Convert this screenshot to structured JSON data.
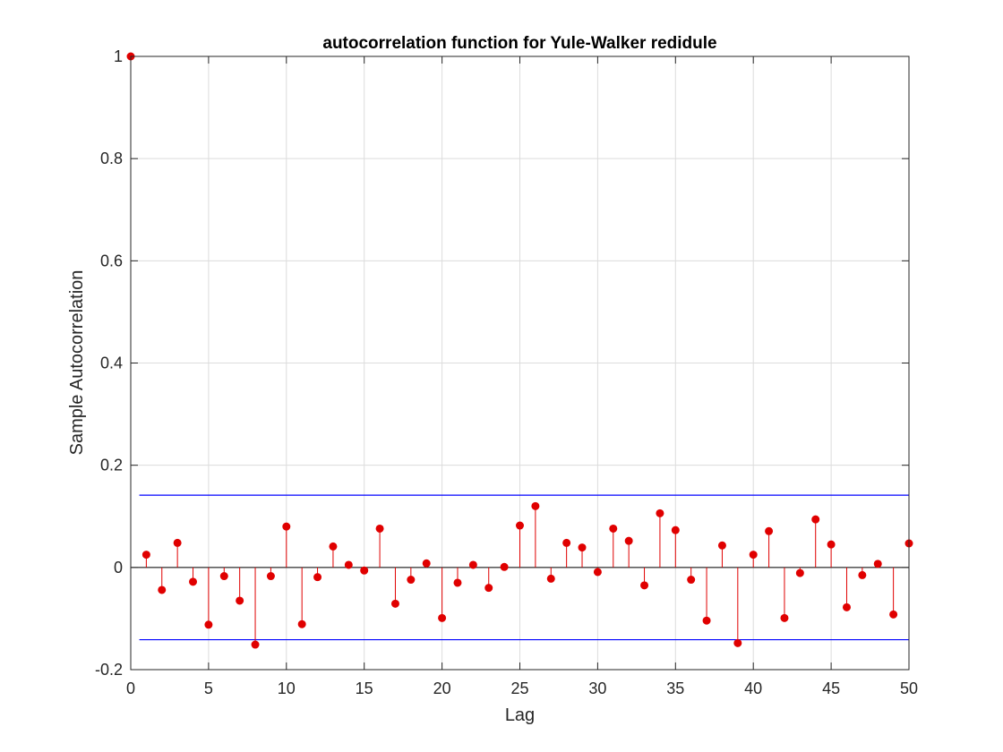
{
  "chart_data": {
    "type": "stem",
    "title": "autocorrelation function for Yule-Walker redidule",
    "xlabel": "Lag",
    "ylabel": "Sample Autocorrelation",
    "xlim": [
      0,
      50
    ],
    "ylim": [
      -0.2,
      1
    ],
    "xticks": [
      "0",
      "5",
      "10",
      "15",
      "20",
      "25",
      "30",
      "35",
      "40",
      "45",
      "50"
    ],
    "yticks": [
      "-0.2",
      "0",
      "0.2",
      "0.4",
      "0.6",
      "0.8",
      "1"
    ],
    "grid": true,
    "series": [
      {
        "x": [
          0,
          1,
          2,
          3,
          4,
          5,
          6,
          7,
          8,
          9,
          10,
          11,
          12,
          13,
          14,
          15,
          16,
          17,
          18,
          19,
          20,
          21,
          22,
          23,
          24,
          25,
          26,
          27,
          28,
          29,
          30,
          31,
          32,
          33,
          34,
          35,
          36,
          37,
          38,
          39,
          40,
          41,
          42,
          43,
          44,
          45,
          46,
          47,
          48,
          49,
          50
        ],
        "values": [
          1.0,
          0.025,
          -0.044,
          0.048,
          -0.028,
          -0.112,
          -0.017,
          -0.065,
          -0.151,
          -0.017,
          0.08,
          -0.111,
          -0.019,
          0.041,
          0.005,
          -0.006,
          0.076,
          -0.071,
          -0.024,
          0.008,
          -0.099,
          -0.03,
          0.005,
          -0.04,
          0.001,
          0.082,
          0.12,
          -0.022,
          0.048,
          0.039,
          -0.009,
          0.076,
          0.052,
          -0.035,
          0.106,
          0.073,
          -0.024,
          -0.104,
          0.043,
          -0.148,
          0.025,
          0.071,
          -0.099,
          -0.011,
          0.094,
          0.045,
          -0.078,
          -0.015,
          0.007,
          -0.092,
          0.047
        ],
        "color": "#e00000"
      }
    ],
    "confidence_bounds": [
      0.1414,
      -0.1414
    ],
    "bound_color": "#0000ff"
  }
}
